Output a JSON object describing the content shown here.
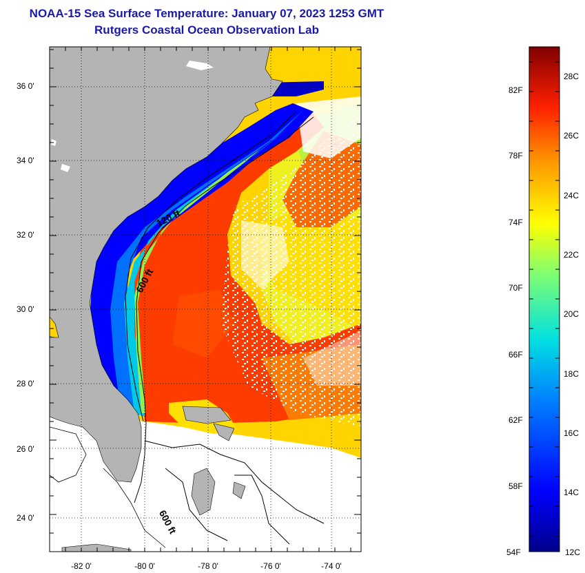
{
  "header": {
    "title": "NOAA-15 Sea Surface Temperature:  January 07, 2023 1253 GMT",
    "subtitle": "Rutgers Coastal Ocean Observation Lab"
  },
  "map": {
    "lat_ticks": [
      "36 0'",
      "34 0'",
      "32 0'",
      "30 0'",
      "28 0'",
      "26 0'",
      "24 0'"
    ],
    "lon_ticks": [
      "-82 0'",
      "-80 0'",
      "-78 0'",
      "-76 0'",
      "-74 0'"
    ],
    "contours": {
      "shelf_120": "120 ft",
      "slope_600": "600 ft",
      "bahamas_600": "600 ft"
    },
    "colors": {
      "land": "#b4b4b4",
      "nodata": "#ffffff",
      "grid": "#000000"
    }
  },
  "colorbar": {
    "fahrenheit": [
      "82F",
      "78F",
      "74F",
      "70F",
      "66F",
      "62F",
      "58F",
      "54F"
    ],
    "celsius": [
      "28C",
      "26C",
      "24C",
      "22C",
      "20C",
      "18C",
      "16C",
      "14C",
      "12C"
    ],
    "range_c": [
      12,
      29
    ]
  }
}
